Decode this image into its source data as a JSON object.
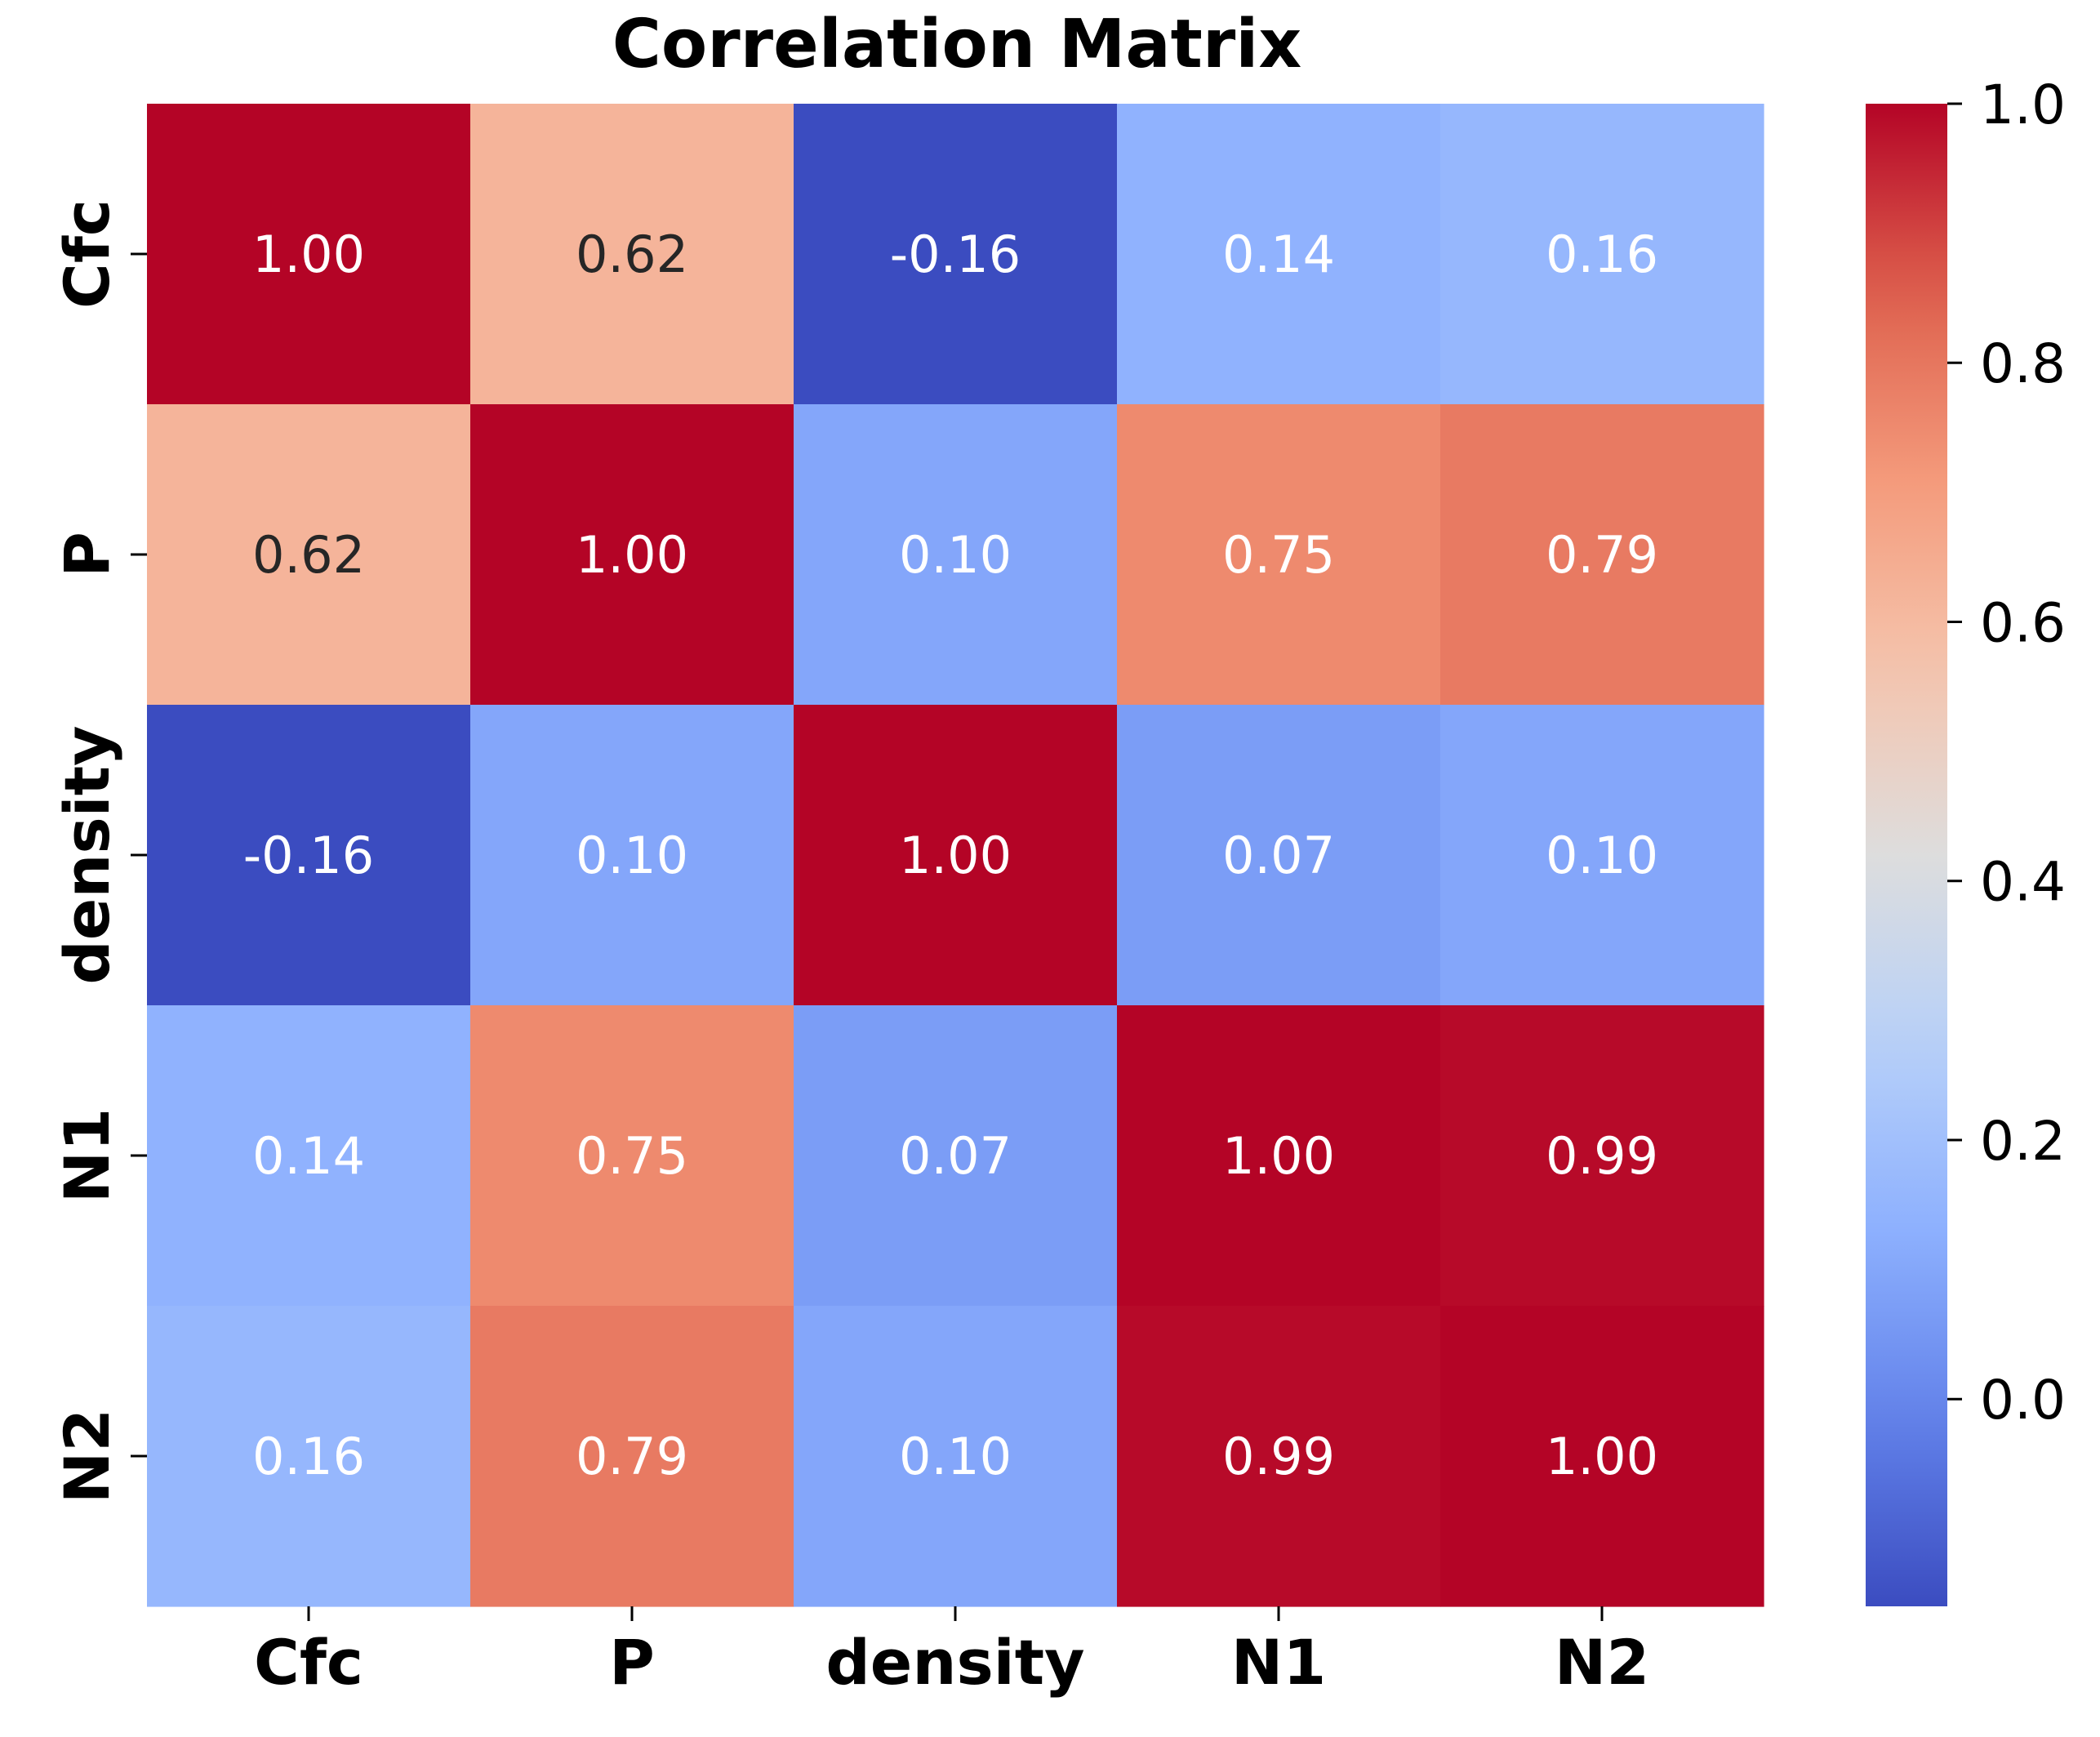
{
  "chart_data": {
    "type": "heatmap",
    "title": "Correlation Matrix",
    "xlabel": "",
    "ylabel": "",
    "x_labels": [
      "Cfc",
      "P",
      "density",
      "N1",
      "N2"
    ],
    "y_labels": [
      "Cfc",
      "P",
      "density",
      "N1",
      "N2"
    ],
    "values": [
      [
        1.0,
        0.62,
        -0.16,
        0.14,
        0.16
      ],
      [
        0.62,
        1.0,
        0.1,
        0.75,
        0.79
      ],
      [
        -0.16,
        0.1,
        1.0,
        0.07,
        0.1
      ],
      [
        0.14,
        0.75,
        0.07,
        1.0,
        0.99
      ],
      [
        0.16,
        0.79,
        0.1,
        0.99,
        1.0
      ]
    ],
    "annotations": [
      [
        "1.00",
        "0.62",
        "-0.16",
        "0.14",
        "0.16"
      ],
      [
        "0.62",
        "1.00",
        "0.10",
        "0.75",
        "0.79"
      ],
      [
        "-0.16",
        "0.10",
        "1.00",
        "0.07",
        "0.10"
      ],
      [
        "0.14",
        "0.75",
        "0.07",
        "1.00",
        "0.99"
      ],
      [
        "0.16",
        "0.79",
        "0.10",
        "0.99",
        "1.00"
      ]
    ],
    "colormap": "coolwarm",
    "vmin": -0.16,
    "vmax": 1.0,
    "colorbar": {
      "ticks": [
        0.0,
        0.2,
        0.4,
        0.6,
        0.8,
        1.0
      ],
      "tick_labels": [
        "0.0",
        "0.2",
        "0.4",
        "0.6",
        "0.8",
        "1.0"
      ],
      "position": "right"
    },
    "text_color_dark": "#262626",
    "text_color_light": "#ffffff"
  }
}
